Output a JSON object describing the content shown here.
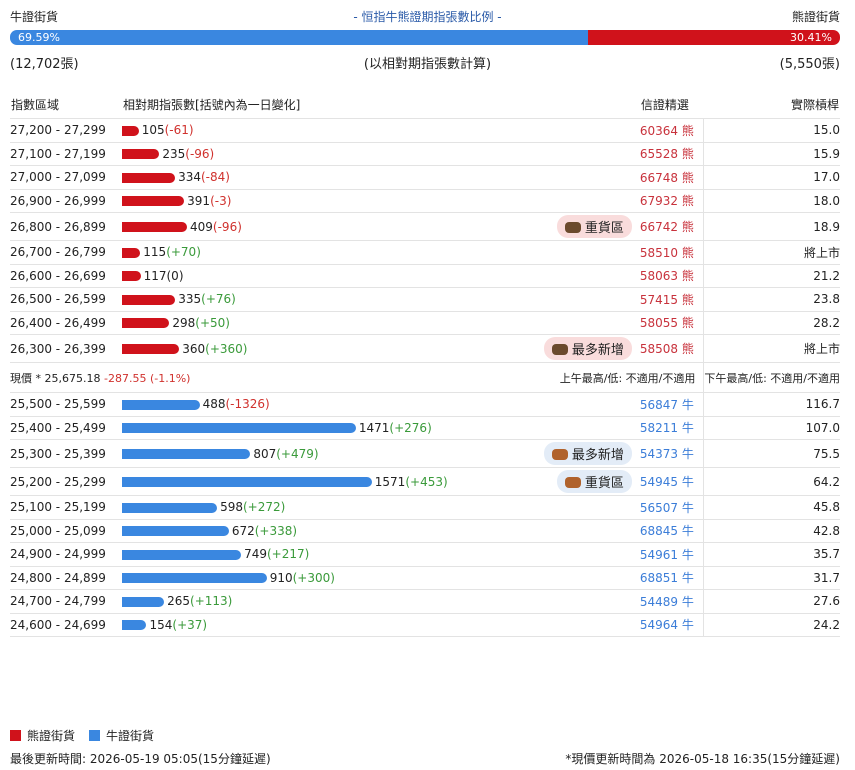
{
  "header": {
    "bull_label": "牛證街貨",
    "title": "- 恒指牛熊證期指張數比例 -",
    "bear_label": "熊證街貨",
    "bull_ratio": {
      "value": 69.59,
      "label": "69.59%"
    },
    "bear_ratio": {
      "value": 30.41,
      "label": "30.41%"
    },
    "bull_count": "(12,702張)",
    "note": "(以相對期指張數計算)",
    "bear_count": "(5,550張)"
  },
  "columns": [
    "指數區域",
    "相對期指張數[括號內為一日變化]",
    "信證精選",
    "實際槓桿"
  ],
  "bear_rows": [
    {
      "range": "27,200 - 27,299",
      "count": 105,
      "change": "(-61)",
      "code": "60364",
      "side": "熊",
      "leverage": "15.0"
    },
    {
      "range": "27,100 - 27,199",
      "count": 235,
      "change": "(-96)",
      "code": "65528",
      "side": "熊",
      "leverage": "15.9"
    },
    {
      "range": "27,000 - 27,099",
      "count": 334,
      "change": "(-84)",
      "code": "66748",
      "side": "熊",
      "leverage": "17.0"
    },
    {
      "range": "26,900 - 26,999",
      "count": 391,
      "change": "(-3)",
      "code": "67932",
      "side": "熊",
      "leverage": "18.0"
    },
    {
      "range": "26,800 - 26,899",
      "count": 409,
      "change": "(-96)",
      "code": "66742",
      "side": "熊",
      "leverage": "18.9",
      "badge": "重貨區"
    },
    {
      "range": "26,700 - 26,799",
      "count": 115,
      "change": "(+70)",
      "code": "58510",
      "side": "熊",
      "leverage": "將上市"
    },
    {
      "range": "26,600 - 26,699",
      "count": 117,
      "change": "(0)",
      "code": "58063",
      "side": "熊",
      "leverage": "21.2"
    },
    {
      "range": "26,500 - 26,599",
      "count": 335,
      "change": "(+76)",
      "code": "57415",
      "side": "熊",
      "leverage": "23.8"
    },
    {
      "range": "26,400 - 26,499",
      "count": 298,
      "change": "(+50)",
      "code": "58055",
      "side": "熊",
      "leverage": "28.2"
    },
    {
      "range": "26,300 - 26,399",
      "count": 360,
      "change": "(+360)",
      "code": "58508",
      "side": "熊",
      "leverage": "將上市",
      "badge": "最多新增"
    }
  ],
  "price": {
    "label": "現價 *",
    "value": "25,675.18",
    "change": "-287.55 (-1.1%)",
    "am": "上午最高/低: 不適用/不適用",
    "pm": "下午最高/低: 不適用/不適用"
  },
  "bull_rows": [
    {
      "range": "25,500 - 25,599",
      "count": 488,
      "change": "(-1326)",
      "code": "56847",
      "side": "牛",
      "leverage": "116.7"
    },
    {
      "range": "25,400 - 25,499",
      "count": 1471,
      "change": "(+276)",
      "code": "58211",
      "side": "牛",
      "leverage": "107.0"
    },
    {
      "range": "25,300 - 25,399",
      "count": 807,
      "change": "(+479)",
      "code": "54373",
      "side": "牛",
      "leverage": "75.5",
      "badge": "最多新增"
    },
    {
      "range": "25,200 - 25,299",
      "count": 1571,
      "change": "(+453)",
      "code": "54945",
      "side": "牛",
      "leverage": "64.2",
      "badge": "重貨區"
    },
    {
      "range": "25,100 - 25,199",
      "count": 598,
      "change": "(+272)",
      "code": "56507",
      "side": "牛",
      "leverage": "45.8"
    },
    {
      "range": "25,000 - 25,099",
      "count": 672,
      "change": "(+338)",
      "code": "68845",
      "side": "牛",
      "leverage": "42.8"
    },
    {
      "range": "24,900 - 24,999",
      "count": 749,
      "change": "(+217)",
      "code": "54961",
      "side": "牛",
      "leverage": "35.7"
    },
    {
      "range": "24,800 - 24,899",
      "count": 910,
      "change": "(+300)",
      "code": "68851",
      "side": "牛",
      "leverage": "31.7"
    },
    {
      "range": "24,700 - 24,799",
      "count": 265,
      "change": "(+113)",
      "code": "54489",
      "side": "牛",
      "leverage": "27.6"
    },
    {
      "range": "24,600 - 24,699",
      "count": 154,
      "change": "(+37)",
      "code": "54964",
      "side": "牛",
      "leverage": "24.2"
    }
  ],
  "legend": {
    "bear": "熊證街貨",
    "bull": "牛證街貨"
  },
  "footer": {
    "left": "最後更新時間: 2026-05-19 05:05(15分鐘延遲)",
    "right": "*現價更新時間為 2026-05-18 16:35(15分鐘延遲)"
  }
}
